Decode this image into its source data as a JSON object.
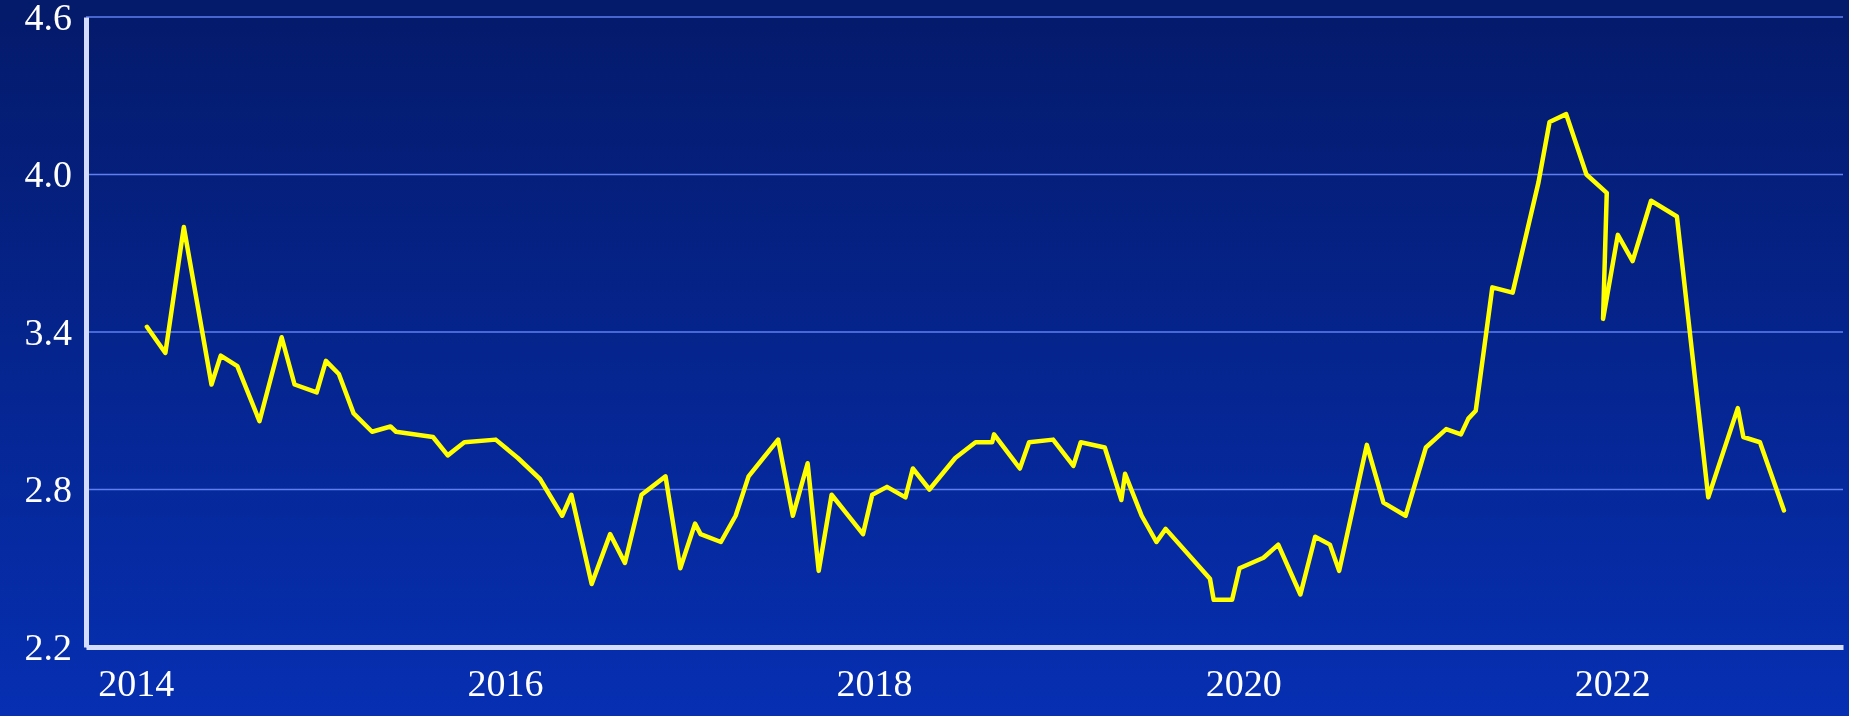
{
  "chart_data": {
    "type": "line",
    "x": [
      2014.06,
      2014.16,
      2014.26,
      2014.41,
      2014.46,
      2014.55,
      2014.67,
      2014.79,
      2014.86,
      2014.98,
      2015.03,
      2015.1,
      2015.18,
      2015.28,
      2015.38,
      2015.41,
      2015.61,
      2015.69,
      2015.78,
      2015.95,
      2016.07,
      2016.19,
      2016.31,
      2016.36,
      2016.47,
      2016.57,
      2016.65,
      2016.74,
      2016.87,
      2016.95,
      2017.03,
      2017.06,
      2017.17,
      2017.25,
      2017.32,
      2017.48,
      2017.56,
      2017.64,
      2017.7,
      2017.77,
      2017.94,
      2017.99,
      2018.07,
      2018.17,
      2018.21,
      2018.3,
      2018.44,
      2018.55,
      2018.64,
      2018.65,
      2018.79,
      2018.84,
      2018.97,
      2019.08,
      2019.12,
      2019.25,
      2019.34,
      2019.36,
      2019.45,
      2019.53,
      2019.58,
      2019.82,
      2019.84,
      2019.94,
      2019.98,
      2020.11,
      2020.19,
      2020.31,
      2020.39,
      2020.47,
      2020.52,
      2020.67,
      2020.76,
      2020.88,
      2020.99,
      2021.1,
      2021.18,
      2021.22,
      2021.26,
      2021.35,
      2021.46,
      2021.6,
      2021.66,
      2021.75,
      2021.86,
      2021.97,
      2021.95,
      2022.03,
      2022.11,
      2022.21,
      2022.35,
      2022.52,
      2022.68,
      2022.71,
      2022.8,
      2022.93
    ],
    "series": [
      {
        "color": "#ffff00",
        "values": [
          3.42,
          3.32,
          3.8,
          3.2,
          3.31,
          3.27,
          3.06,
          3.38,
          3.2,
          3.17,
          3.29,
          3.24,
          3.09,
          3.02,
          3.04,
          3.02,
          3.0,
          2.93,
          2.98,
          2.99,
          2.92,
          2.84,
          2.7,
          2.78,
          2.44,
          2.63,
          2.52,
          2.78,
          2.85,
          2.5,
          2.67,
          2.63,
          2.6,
          2.7,
          2.85,
          2.99,
          2.7,
          2.9,
          2.49,
          2.78,
          2.63,
          2.78,
          2.81,
          2.77,
          2.88,
          2.8,
          2.92,
          2.98,
          2.98,
          3.01,
          2.88,
          2.98,
          2.99,
          2.89,
          2.98,
          2.96,
          2.76,
          2.86,
          2.7,
          2.6,
          2.65,
          2.46,
          2.38,
          2.38,
          2.5,
          2.54,
          2.59,
          2.4,
          2.62,
          2.59,
          2.49,
          2.97,
          2.75,
          2.7,
          2.96,
          3.03,
          3.01,
          3.07,
          3.1,
          3.57,
          3.55,
          3.97,
          4.2,
          4.23,
          4.0,
          3.93,
          3.45,
          3.77,
          3.67,
          3.9,
          3.84,
          2.77,
          3.11,
          3.0,
          2.98,
          2.72
        ]
      }
    ],
    "xlim": [
      2013.73,
      2023.25
    ],
    "xticks": [
      2014,
      2016,
      2018,
      2020,
      2022
    ],
    "ylim": [
      2.2,
      4.6
    ],
    "yticks": [
      {
        "value": 2.2,
        "label": "2.2"
      },
      {
        "value": 2.8,
        "label": "2.8"
      },
      {
        "value": 3.4,
        "label": "3.4"
      },
      {
        "value": 4.0,
        "label": "4.0"
      },
      {
        "value": 4.6,
        "label": "4.6"
      }
    ],
    "grid": "y",
    "marker": "none",
    "line_style": "solid"
  }
}
